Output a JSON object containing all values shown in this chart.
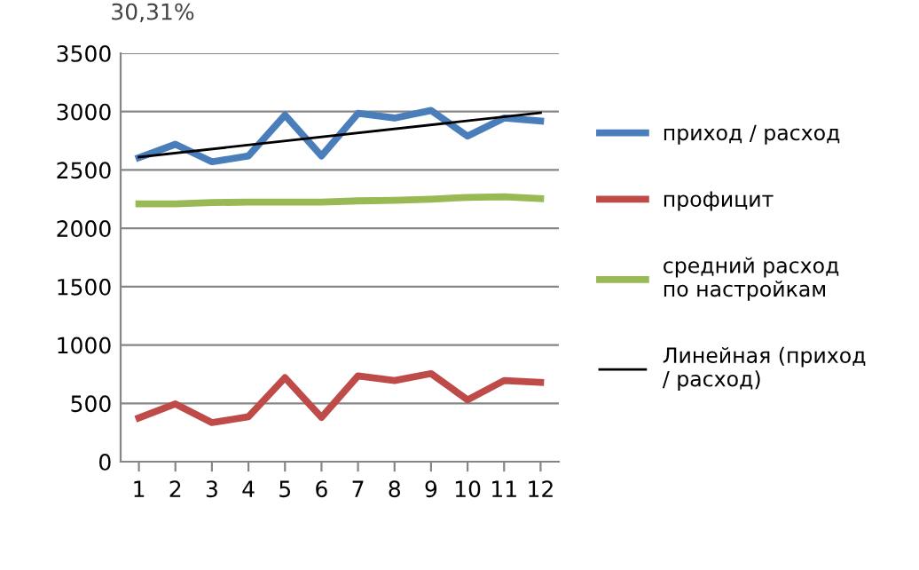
{
  "chart_data": {
    "type": "line",
    "categories": [
      "1",
      "2",
      "3",
      "4",
      "5",
      "6",
      "7",
      "8",
      "9",
      "10",
      "11",
      "12"
    ],
    "series": [
      {
        "name": "приход / расход",
        "color": "#4a7ebb",
        "values": [
          2605,
          2720,
          2570,
          2620,
          2970,
          2620,
          2985,
          2945,
          3010,
          2790,
          2945,
          2920
        ]
      },
      {
        "name": "профицит",
        "color": "#be4b48",
        "values": [
          375,
          495,
          335,
          385,
          720,
          380,
          735,
          695,
          755,
          530,
          695,
          680
        ]
      },
      {
        "name": "средний расход по настройкам",
        "color": "#98b954",
        "values": [
          2210,
          2210,
          2220,
          2225,
          2225,
          2225,
          2235,
          2240,
          2250,
          2265,
          2270,
          2255
        ]
      },
      {
        "name": "Линейная (приход / расход)",
        "color": "#000000",
        "x": [
          "1",
          "12"
        ],
        "values": [
          2610,
          2990
        ]
      }
    ],
    "ylim": [
      0,
      3500
    ],
    "yticks": [
      0,
      500,
      1000,
      1500,
      2000,
      2500,
      3000,
      3500
    ],
    "grid": "y",
    "legend": "right",
    "marker": "none",
    "annotations": [
      "30,31%"
    ]
  }
}
